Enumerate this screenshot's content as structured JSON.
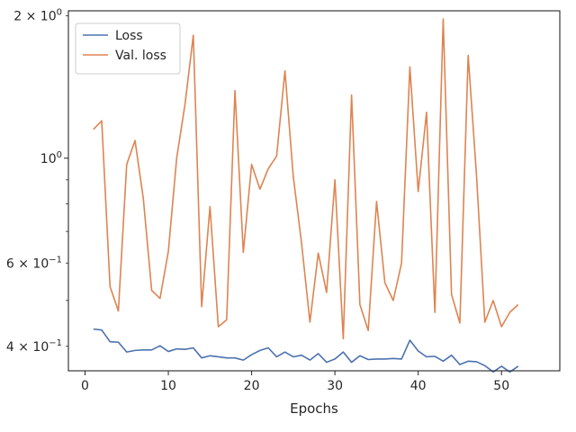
{
  "chart_data": {
    "type": "line",
    "title": "",
    "xlabel": "Epochs",
    "ylabel": "",
    "yscale": "log",
    "xlim": [
      -2,
      57
    ],
    "ylim": [
      0.355,
      2.05
    ],
    "x_ticks": [
      0,
      10,
      20,
      30,
      40,
      50
    ],
    "x_tick_labels": [
      "0",
      "10",
      "20",
      "30",
      "40",
      "50"
    ],
    "y_ticks_major": [
      1.0
    ],
    "y_ticks_labeled": [
      {
        "value": 2.0,
        "label": "2 × 10⁰"
      },
      {
        "value": 1.0,
        "label": "10⁰"
      },
      {
        "value": 0.6,
        "label": "6 × 10⁻¹"
      },
      {
        "value": 0.4,
        "label": "4 × 10⁻¹"
      }
    ],
    "y_ticks_minor": [
      0.4,
      0.5,
      0.6,
      0.7,
      0.8,
      0.9,
      2.0
    ],
    "grid": false,
    "legend_position": "top-left",
    "x": [
      1,
      2,
      3,
      4,
      5,
      6,
      7,
      8,
      9,
      10,
      11,
      12,
      13,
      14,
      15,
      16,
      17,
      18,
      19,
      20,
      21,
      22,
      23,
      24,
      25,
      26,
      27,
      28,
      29,
      30,
      31,
      32,
      33,
      34,
      35,
      36,
      37,
      38,
      39,
      40,
      41,
      42,
      43,
      44,
      45,
      46,
      47,
      48,
      49,
      50,
      51,
      52
    ],
    "series": [
      {
        "name": "Loss",
        "color": "#4c72b0",
        "values": [
          0.435,
          0.433,
          0.409,
          0.408,
          0.389,
          0.392,
          0.393,
          0.393,
          0.401,
          0.39,
          0.395,
          0.394,
          0.397,
          0.378,
          0.382,
          0.38,
          0.378,
          0.378,
          0.374,
          0.384,
          0.392,
          0.397,
          0.38,
          0.389,
          0.38,
          0.383,
          0.374,
          0.386,
          0.37,
          0.376,
          0.389,
          0.37,
          0.382,
          0.375,
          0.376,
          0.376,
          0.377,
          0.376,
          0.412,
          0.391,
          0.38,
          0.381,
          0.372,
          0.383,
          0.366,
          0.372,
          0.371,
          0.364,
          0.353,
          0.363,
          0.353,
          0.363
        ]
      },
      {
        "name": "Val. loss",
        "color": "#dd8452",
        "values": [
          1.15,
          1.2,
          0.535,
          0.475,
          0.97,
          1.09,
          0.82,
          0.525,
          0.505,
          0.635,
          1.0,
          1.3,
          1.82,
          0.485,
          0.79,
          0.44,
          0.455,
          1.39,
          0.632,
          0.97,
          0.86,
          0.95,
          1.01,
          1.53,
          0.915,
          0.66,
          0.45,
          0.63,
          0.52,
          0.9,
          0.415,
          1.36,
          0.49,
          0.432,
          0.81,
          0.545,
          0.5,
          0.6,
          1.56,
          0.85,
          1.25,
          0.472,
          1.97,
          0.515,
          0.448,
          1.65,
          0.92,
          0.45,
          0.5,
          0.44,
          0.472,
          0.49
        ]
      }
    ]
  }
}
